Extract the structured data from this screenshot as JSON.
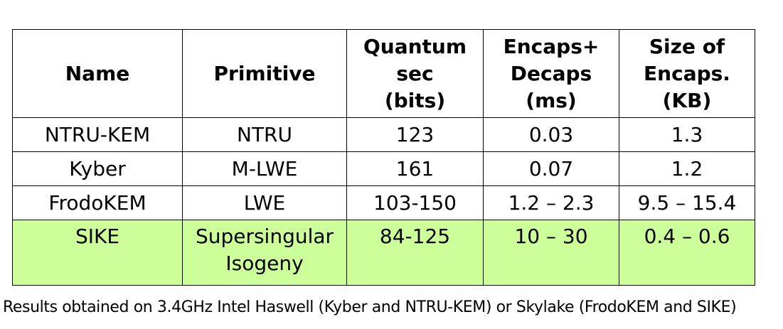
{
  "table": {
    "headers": [
      [
        "Name"
      ],
      [
        "Primitive"
      ],
      [
        "Quantum",
        "sec",
        "(bits)"
      ],
      [
        "Encaps+",
        "Decaps",
        "(ms)"
      ],
      [
        "Size of",
        "Encaps.",
        "(KB)"
      ]
    ],
    "rows": [
      {
        "name": "NTRU-KEM",
        "primitive": [
          "NTRU"
        ],
        "quantum_sec": "123",
        "time": "0.03",
        "size": "1.3",
        "highlighted": false
      },
      {
        "name": "Kyber",
        "primitive": [
          "M-LWE"
        ],
        "quantum_sec": "161",
        "time": "0.07",
        "size": "1.2",
        "highlighted": false
      },
      {
        "name": "FrodoKEM",
        "primitive": [
          "LWE"
        ],
        "quantum_sec": "103-150",
        "time": "1.2 – 2.3",
        "size": "9.5 – 15.4",
        "highlighted": false
      },
      {
        "name": "SIKE",
        "primitive": [
          "Supersingular",
          "Isogeny"
        ],
        "quantum_sec": "84-125",
        "time": "10 – 30",
        "size": "0.4 – 0.6",
        "highlighted": true
      }
    ],
    "highlight_color": "#ccff99"
  },
  "caption": "Results obtained on 3.4GHz Intel Haswell (Kyber and NTRU-KEM) or Skylake (FrodoKEM and SIKE)"
}
